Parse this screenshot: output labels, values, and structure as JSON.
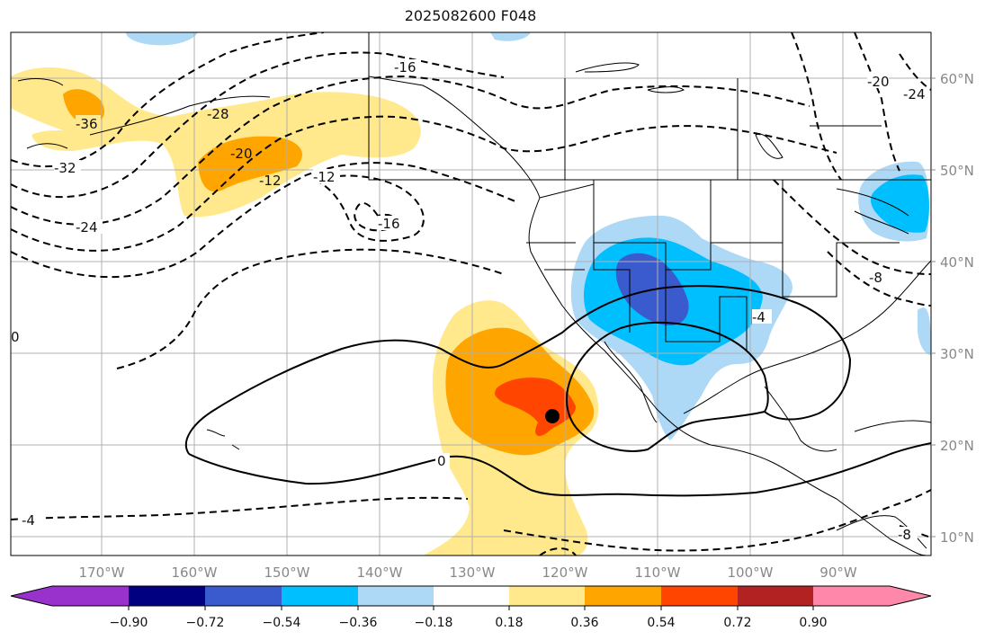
{
  "title": "2025082600 F048",
  "lat_labels": [
    "60°N",
    "50°N",
    "40°N",
    "30°N",
    "20°N",
    "10°N"
  ],
  "lon_labels": [
    "170°W",
    "160°W",
    "150°W",
    "140°W",
    "130°W",
    "120°W",
    "110°W",
    "100°W",
    "90°W"
  ],
  "colorbar": {
    "ticks": [
      "−0.90",
      "−0.72",
      "−0.54",
      "−0.36",
      "−0.18",
      "0.18",
      "0.36",
      "0.54",
      "0.72",
      "0.90"
    ],
    "colors": [
      "#9932cc",
      "#000080",
      "#3a5bcd",
      "#00bfff",
      "#add8f6",
      "#ffffff",
      "#ffe98c",
      "#ffa500",
      "#ff4500",
      "#b22222",
      "#ff88aa"
    ]
  },
  "contour_labels": [
    "-36",
    "-32",
    "-28",
    "-24",
    "-20",
    "-16",
    "-16",
    "-12",
    "-12",
    "-20",
    "-24",
    "-8",
    "-4",
    "-4",
    "0",
    "-8",
    "0"
  ],
  "marker": {
    "lat": 23,
    "lon": -120
  }
}
